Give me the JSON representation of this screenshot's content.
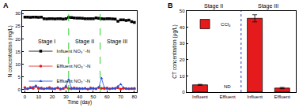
{
  "chart_data": [
    {
      "type": "scatter",
      "label": "A",
      "x_label": "Time (day)",
      "y_label": "N concentration (mg/L)",
      "x": [
        0,
        2,
        4,
        6,
        8,
        10,
        12,
        14,
        16,
        18,
        20,
        22,
        24,
        26,
        28,
        30,
        32,
        34,
        36,
        38,
        40,
        42,
        44,
        46,
        48,
        50,
        52,
        54,
        56,
        58,
        60,
        62,
        64,
        66,
        68,
        70,
        72,
        74,
        76,
        78,
        80
      ],
      "series": [
        {
          "name": "Influent NO₃⁻-N",
          "color": "#000000",
          "marker": "square",
          "line_style": "solid",
          "values": [
            28.6,
            28.6,
            28.5,
            28.6,
            28.6,
            28.5,
            28.6,
            28.0,
            27.9,
            28.0,
            28.0,
            27.9,
            28.0,
            28.0,
            27.8,
            28.0,
            28.5,
            28.4,
            28.3,
            28.2,
            28.2,
            28.1,
            28.0,
            28.0,
            28.0,
            28.0,
            28.3,
            28.1,
            28.0,
            27.9,
            28.0,
            28.0,
            27.9,
            27.8,
            27.0,
            27.5,
            27.5,
            27.3,
            27.4,
            26.8,
            26.5
          ]
        },
        {
          "name": "Effluent NO₃⁻-N",
          "color": "#e41a1c",
          "marker": "circle",
          "line_style": "solid",
          "values": [
            0.8,
            0.3,
            0.9,
            0.5,
            1.2,
            0.4,
            0.6,
            0.3,
            0.5,
            0.8,
            0.4,
            0.3,
            0.6,
            0.2,
            0.5,
            0.9,
            0.4,
            0.3,
            0.6,
            0.5,
            0.3,
            0.4,
            0.5,
            0.2,
            0.6,
            0.4,
            0.3,
            0.8,
            0.5,
            0.4,
            0.6,
            0.3,
            0.5,
            0.4,
            0.7,
            0.2,
            0.5,
            0.4,
            0.3,
            0.4,
            0.5
          ]
        },
        {
          "name": "Effluent NO₂⁻-N",
          "color": "#1f4fe0",
          "marker": "triangle-up",
          "line_style": "solid",
          "values": [
            0.2,
            0.3,
            0.5,
            1.0,
            1.6,
            0.8,
            0.3,
            0.2,
            0.5,
            0.3,
            0.2,
            0.4,
            0.9,
            0.3,
            0.2,
            1.5,
            4.0,
            0.6,
            0.3,
            0.2,
            0.5,
            0.3,
            0.4,
            0.2,
            0.3,
            0.6,
            0.3,
            0.9,
            4.5,
            0.8,
            0.3,
            0.2,
            0.4,
            0.6,
            1.3,
            2.1,
            0.8,
            0.3,
            0.2,
            0.3,
            0.2
          ]
        }
      ],
      "stages": [
        {
          "text": "Stage I",
          "start": 0,
          "end": 32
        },
        {
          "text": "Stage II",
          "start": 32,
          "end": 55
        },
        {
          "text": "Stage III",
          "start": 55,
          "end": 80
        }
      ],
      "xlim": [
        -2,
        82
      ],
      "xticks": [
        0,
        10,
        20,
        30,
        40,
        50,
        60,
        70,
        80
      ],
      "ylim": [
        -1,
        31
      ],
      "yticks": [
        0,
        5,
        10,
        15,
        20,
        25,
        30
      ],
      "grid": false,
      "legend": "center left"
    },
    {
      "type": "bar",
      "label": "B",
      "y_label": "CT concentration (μg/L)",
      "categories": [
        "Influent",
        "Effluent",
        "Influent",
        "Effluent"
      ],
      "series": [
        {
          "name": "CCl₄",
          "color": "#e41a1c",
          "values": [
            4.5,
            null,
            45.5,
            2.5
          ],
          "errors": [
            0.3,
            null,
            2.2,
            0.4
          ]
        }
      ],
      "annotations": [
        {
          "text": "ND",
          "x": 1
        }
      ],
      "stages": [
        {
          "text": "Stage II",
          "start": 0,
          "end": 1
        },
        {
          "text": "Stage III",
          "start": 2,
          "end": 3
        }
      ],
      "ylim": [
        0,
        50
      ],
      "yticks": [
        0,
        10,
        20,
        30,
        40,
        50
      ],
      "grid": false,
      "legend": "upper left"
    }
  ]
}
